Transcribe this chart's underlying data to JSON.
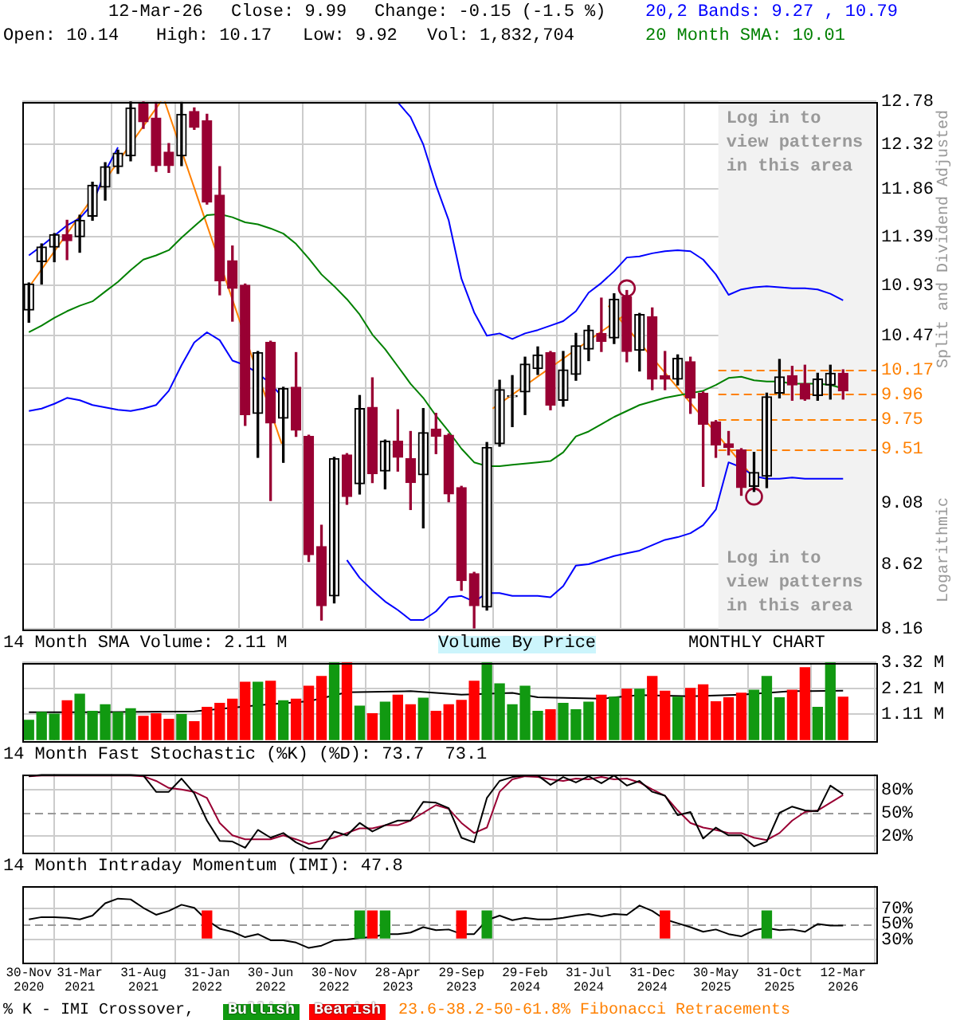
{
  "chart_data": [
    {
      "type": "candlestick",
      "x": [
        "2020-11",
        "2020-12",
        "2021-01",
        "2021-02",
        "2021-03",
        "2021-04",
        "2021-05",
        "2021-06",
        "2021-07",
        "2021-08",
        "2021-09",
        "2021-10",
        "2021-11",
        "2021-12",
        "2022-01",
        "2022-02",
        "2022-03",
        "2022-04",
        "2022-05",
        "2022-06",
        "2022-07",
        "2022-08",
        "2022-09",
        "2022-10",
        "2022-11",
        "2022-12",
        "2023-01",
        "2023-02",
        "2023-03",
        "2023-04",
        "2023-05",
        "2023-06",
        "2023-07",
        "2023-08",
        "2023-09",
        "2023-10",
        "2023-11",
        "2023-12",
        "2024-01",
        "2024-02",
        "2024-03",
        "2024-04",
        "2024-05",
        "2024-06",
        "2024-07",
        "2024-08",
        "2024-09",
        "2024-10",
        "2024-11",
        "2024-12",
        "2025-01",
        "2025-02",
        "2025-03",
        "2025-04",
        "2025-05",
        "2025-06",
        "2025-07",
        "2025-08",
        "2025-09",
        "2025-10",
        "2025-11",
        "2025-12",
        "2026-01",
        "2026-02",
        "2026-03"
      ],
      "ohlc": [
        [
          10.7,
          10.95,
          10.59,
          10.94
        ],
        [
          11.15,
          11.32,
          10.94,
          11.29
        ],
        [
          11.29,
          11.42,
          11.15,
          11.41
        ],
        [
          11.41,
          11.55,
          11.17,
          11.35
        ],
        [
          11.39,
          11.6,
          11.24,
          11.55
        ],
        [
          11.59,
          11.93,
          11.55,
          11.9
        ],
        [
          11.88,
          12.13,
          11.75,
          12.09
        ],
        [
          12.09,
          12.26,
          12.02,
          12.23
        ],
        [
          12.2,
          12.78,
          12.15,
          12.71
        ],
        [
          12.77,
          12.78,
          12.49,
          12.56
        ],
        [
          12.6,
          12.77,
          12.04,
          12.1
        ],
        [
          12.24,
          12.33,
          12.03,
          12.1
        ],
        [
          12.2,
          12.77,
          12.1,
          12.64
        ],
        [
          12.67,
          12.71,
          12.48,
          12.5
        ],
        [
          12.57,
          12.64,
          11.71,
          11.73
        ],
        [
          11.8,
          12.09,
          10.84,
          10.97
        ],
        [
          11.16,
          11.3,
          10.6,
          10.9
        ],
        [
          10.93,
          10.94,
          9.7,
          9.79
        ],
        [
          9.8,
          10.33,
          9.44,
          10.32
        ],
        [
          10.41,
          10.42,
          9.1,
          9.72
        ],
        [
          9.76,
          10.02,
          9.4,
          10.01
        ],
        [
          10.02,
          10.32,
          9.61,
          9.66
        ],
        [
          9.61,
          9.62,
          8.64,
          8.69
        ],
        [
          8.75,
          8.91,
          8.22,
          8.32
        ],
        [
          8.39,
          9.44,
          8.34,
          9.43
        ],
        [
          9.46,
          9.47,
          9.07,
          9.13
        ],
        [
          9.23,
          9.95,
          9.15,
          9.84
        ],
        [
          9.85,
          10.1,
          9.24,
          9.31
        ],
        [
          9.33,
          9.58,
          9.19,
          9.57
        ],
        [
          9.57,
          9.83,
          9.33,
          9.44
        ],
        [
          9.43,
          9.65,
          9.03,
          9.24
        ],
        [
          9.3,
          9.84,
          8.89,
          9.64
        ],
        [
          9.67,
          9.8,
          9.47,
          9.61
        ],
        [
          9.62,
          9.63,
          9.09,
          9.15
        ],
        [
          9.2,
          9.21,
          8.43,
          8.5
        ],
        [
          8.55,
          8.56,
          8.16,
          8.32
        ],
        [
          8.31,
          9.56,
          8.29,
          9.52
        ],
        [
          9.55,
          10.08,
          9.53,
          10.0
        ],
        [
          9.94,
          10.12,
          9.69,
          9.95
        ],
        [
          9.98,
          10.28,
          9.79,
          10.22
        ],
        [
          10.18,
          10.37,
          10.13,
          10.3
        ],
        [
          10.32,
          10.33,
          9.83,
          9.87
        ],
        [
          9.91,
          10.33,
          9.86,
          10.17
        ],
        [
          10.13,
          10.49,
          10.08,
          10.38
        ],
        [
          10.35,
          10.56,
          10.25,
          10.52
        ],
        [
          10.49,
          10.81,
          10.33,
          10.42
        ],
        [
          10.45,
          10.85,
          10.4,
          10.8
        ],
        [
          10.82,
          10.88,
          10.24,
          10.33
        ],
        [
          10.34,
          10.67,
          10.16,
          10.66
        ],
        [
          10.64,
          10.72,
          10.0,
          10.09
        ],
        [
          10.12,
          10.33,
          10.0,
          10.09
        ],
        [
          10.09,
          10.3,
          10.04,
          10.27
        ],
        [
          10.24,
          10.28,
          9.8,
          9.93
        ],
        [
          9.97,
          9.98,
          9.21,
          9.71
        ],
        [
          9.73,
          9.74,
          9.44,
          9.54
        ],
        [
          9.55,
          9.65,
          9.46,
          9.52
        ],
        [
          9.5,
          9.51,
          9.14,
          9.2
        ],
        [
          9.21,
          9.48,
          9.17,
          9.32
        ],
        [
          9.29,
          9.97,
          9.2,
          9.94
        ],
        [
          9.97,
          10.26,
          9.93,
          10.11
        ],
        [
          10.12,
          10.2,
          9.91,
          10.04
        ],
        [
          10.05,
          10.21,
          9.91,
          9.92
        ],
        [
          9.95,
          10.14,
          9.91,
          10.09
        ],
        [
          10.04,
          10.21,
          9.92,
          10.14
        ],
        [
          10.14,
          10.17,
          9.92,
          9.99
        ]
      ],
      "colors": [
        "#000000",
        "#000000",
        "#000000",
        "#990033",
        "#000000",
        "#000000",
        "#000000",
        "#000000",
        "#000000",
        "#990033",
        "#990033",
        "#990033",
        "#000000",
        "#990033",
        "#990033",
        "#990033",
        "#990033",
        "#990033",
        "#000000",
        "#990033",
        "#000000",
        "#990033",
        "#990033",
        "#990033",
        "#000000",
        "#990033",
        "#000000",
        "#990033",
        "#000000",
        "#990033",
        "#990033",
        "#000000",
        "#990033",
        "#990033",
        "#990033",
        "#990033",
        "#000000",
        "#000000",
        "#000000",
        "#000000",
        "#000000",
        "#990033",
        "#000000",
        "#000000",
        "#000000",
        "#990033",
        "#000000",
        "#990033",
        "#000000",
        "#990033",
        "#990033",
        "#000000",
        "#990033",
        "#990033",
        "#990033",
        "#990033",
        "#990033",
        "#000000",
        "#000000",
        "#000000",
        "#990033",
        "#990033",
        "#000000",
        "#000000",
        "#990033"
      ],
      "xlim": [
        "2020-10-16",
        "2026-05-20"
      ],
      "xticks": [
        {
          "value": "2020-11",
          "label": null
        },
        {
          "value": "2021-03",
          "label": null
        },
        {
          "value": "2021-08",
          "label": null
        },
        {
          "value": "2022-01",
          "label": null
        },
        {
          "value": "2022-06",
          "label": null
        },
        {
          "value": "2022-11",
          "label": null
        },
        {
          "value": "2023-04",
          "label": null
        },
        {
          "value": "2023-09",
          "label": null
        },
        {
          "value": "2024-02",
          "label": null
        },
        {
          "value": "2024-07",
          "label": null
        },
        {
          "value": "2024-12",
          "label": null
        },
        {
          "value": "2025-05",
          "label": null
        },
        {
          "value": "2025-10",
          "label": null
        },
        {
          "value": "2026-03",
          "label": null
        }
      ],
      "ylim": [
        8.16,
        12.78
      ],
      "yticks": [
        8.16,
        8.62,
        9.08,
        {
          "value": 9.54,
          "label": null
        },
        {
          "value": 10.01,
          "label": null
        },
        10.47,
        10.93,
        11.39,
        11.86,
        12.32,
        12.78
      ],
      "log": true,
      "grid": true,
      "tick_labels": "y",
      "ylabel": "Split and Dividend Adjusted",
      "series": [
        {
          "type": "line",
          "color": "#008000",
          "values": [
            10.5,
            10.56,
            10.63,
            10.69,
            10.74,
            10.78,
            10.87,
            10.96,
            11.07,
            11.17,
            11.21,
            11.26,
            11.38,
            11.49,
            11.6,
            11.61,
            11.58,
            11.53,
            11.51,
            11.47,
            11.42,
            11.32,
            11.18,
            11.03,
            10.92,
            10.8,
            10.66,
            10.48,
            10.35,
            10.2,
            10.05,
            9.93,
            9.78,
            9.65,
            9.51,
            9.4,
            9.37,
            9.37,
            9.38,
            9.39,
            9.4,
            9.41,
            9.48,
            9.61,
            9.65,
            9.71,
            9.77,
            9.82,
            9.87,
            9.9,
            9.93,
            9.95,
            9.97,
            9.99,
            10.04,
            10.1,
            10.11,
            10.08,
            10.07,
            10.07,
            10.05,
            10.05,
            10.05,
            10.04,
            10.01
          ]
        },
        {
          "type": "line",
          "color": "#0000ff",
          "values": [
            11.21,
            11.3,
            11.4,
            11.5,
            11.57,
            11.71,
            12.04,
            12.29,
            null,
            null,
            null,
            null,
            null,
            null,
            null,
            null,
            null,
            null,
            null,
            null,
            null,
            null,
            null,
            null,
            null,
            null,
            null,
            null,
            null,
            12.77,
            12.61,
            12.32,
            11.9,
            11.55,
            10.99,
            10.68,
            10.47,
            10.49,
            10.44,
            10.49,
            10.52,
            10.56,
            10.6,
            10.69,
            10.86,
            10.95,
            11.06,
            11.19,
            11.2,
            11.23,
            11.25,
            11.26,
            11.25,
            11.17,
            11.03,
            10.84,
            10.89,
            10.91,
            10.92,
            10.91,
            10.9,
            10.9,
            10.89,
            10.85,
            10.79
          ]
        },
        {
          "type": "line",
          "color": "#0000ff",
          "values": [
            9.82,
            9.84,
            9.88,
            9.93,
            9.91,
            9.87,
            9.85,
            9.83,
            9.82,
            9.84,
            9.87,
            9.99,
            10.21,
            10.41,
            10.5,
            10.43,
            10.25,
            10.21,
            10.14,
            10.05,
            9.93,
            null,
            null,
            null,
            null,
            8.65,
            8.52,
            8.43,
            8.35,
            8.29,
            8.22,
            8.22,
            8.28,
            8.38,
            8.39,
            8.35,
            8.41,
            8.41,
            8.39,
            8.39,
            8.39,
            8.38,
            8.46,
            8.61,
            8.62,
            8.65,
            8.68,
            8.7,
            8.72,
            8.76,
            8.8,
            8.82,
            8.85,
            8.91,
            9.03,
            9.4,
            9.36,
            9.29,
            9.27,
            9.27,
            9.28,
            9.27,
            9.27,
            9.27,
            9.27
          ]
        },
        {
          "type": "line",
          "color": "#ff8000",
          "x": [
            "2020-11",
            "2021-09-13"
          ],
          "values": [
            10.91,
            12.78
          ]
        },
        {
          "type": "line",
          "color": "#ff8000",
          "x": [
            "2021-09-22",
            "2022-06-28"
          ],
          "values": [
            12.78,
            9.55
          ]
        },
        {
          "type": "line",
          "color": "#ff8000",
          "x": [
            "2023-11-15",
            "2024-09-25"
          ],
          "values": [
            9.84,
            10.65
          ]
        },
        {
          "type": "line",
          "color": "#ff8000",
          "x": [
            "2024-08-18",
            "2025-07-28"
          ],
          "values": [
            10.74,
            9.29
          ]
        },
        {
          "type": "scatter",
          "marker": "circle",
          "color": "#990033",
          "x": [
            "2024-10",
            "2025-08"
          ],
          "values": [
            10.9,
            9.13
          ]
        }
      ],
      "ref_lines": [
        {
          "axis": "y",
          "value": 10.17,
          "label": "10.17",
          "color": "#ff8000",
          "line_style": "dashed"
        },
        {
          "axis": "y",
          "value": 9.96,
          "label": "9.96",
          "color": "#ff8000",
          "line_style": "dashed"
        },
        {
          "axis": "y",
          "value": 9.75,
          "label": "9.75",
          "color": "#ff8000",
          "line_style": "dashed"
        },
        {
          "axis": "y",
          "value": 9.51,
          "label": "9.51",
          "color": "#ff8000",
          "line_style": "dashed"
        }
      ],
      "bands": [
        {
          "axis": "x",
          "from": "2025-05-07",
          "to": "2026-05-20",
          "label": "Log in to view patterns in this area",
          "color": "#f2f2f2"
        }
      ],
      "annotations": [
        "12-Mar-26",
        "Close: 9.99",
        "Change: -0.15 (-1.5 %)",
        "Open: 10.14",
        "High: 10.17",
        "Low: 9.92",
        "Vol: 1,832,704",
        "20,2 Bands: 9.27 , 10.79",
        "20 Month SMA: 10.01",
        "Log in to view patterns in this area",
        "Logarithmic"
      ]
    },
    {
      "type": "bar",
      "title": "14 Month SMA Volume: 2.11 M",
      "x": [
        "2020-11",
        "2020-12",
        "2021-01",
        "2021-02",
        "2021-03",
        "2021-04",
        "2021-05",
        "2021-06",
        "2021-07",
        "2021-08",
        "2021-09",
        "2021-10",
        "2021-11",
        "2021-12",
        "2022-01",
        "2022-02",
        "2022-03",
        "2022-04",
        "2022-05",
        "2022-06",
        "2022-07",
        "2022-08",
        "2022-09",
        "2022-10",
        "2022-11",
        "2022-12",
        "2023-01",
        "2023-02",
        "2023-03",
        "2023-04",
        "2023-05",
        "2023-06",
        "2023-07",
        "2023-08",
        "2023-09",
        "2023-10",
        "2023-11",
        "2023-12",
        "2024-01",
        "2024-02",
        "2024-03",
        "2024-04",
        "2024-05",
        "2024-06",
        "2024-07",
        "2024-08",
        "2024-09",
        "2024-10",
        "2024-11",
        "2024-12",
        "2025-01",
        "2025-02",
        "2025-03",
        "2025-04",
        "2025-05",
        "2025-06",
        "2025-07",
        "2025-08",
        "2025-09",
        "2025-10",
        "2025-11",
        "2025-12",
        "2026-01",
        "2026-02",
        "2026-03"
      ],
      "xlim": [
        "2020-10-16",
        "2026-05-20"
      ],
      "xticks": [
        {
          "value": "2020-11",
          "label": null
        },
        {
          "value": "2021-03",
          "label": null
        },
        {
          "value": "2021-08",
          "label": null
        },
        {
          "value": "2022-01",
          "label": null
        },
        {
          "value": "2022-06",
          "label": null
        },
        {
          "value": "2022-11",
          "label": null
        },
        {
          "value": "2023-04",
          "label": null
        },
        {
          "value": "2023-09",
          "label": null
        },
        {
          "value": "2024-02",
          "label": null
        },
        {
          "value": "2024-07",
          "label": null
        },
        {
          "value": "2024-12",
          "label": null
        },
        {
          "value": "2025-05",
          "label": null
        },
        {
          "value": "2025-10",
          "label": null
        },
        {
          "value": "2026-03",
          "label": null
        }
      ],
      "ylim": [
        0,
        3.32
      ],
      "yticks": [
        {
          "value": 1.11,
          "label": "1.11 M"
        },
        {
          "value": 2.21,
          "label": "2.21 M"
        },
        {
          "value": 3.32,
          "label": "3.32 M"
        }
      ],
      "grid": true,
      "tick_labels": "y",
      "series": [
        {
          "colors": [
            "#119911",
            "#119911",
            "#119911",
            "#ff0000",
            "#119911",
            "#119911",
            "#119911",
            "#119911",
            "#119911",
            "#ff0000",
            "#ff0000",
            "#ff0000",
            "#119911",
            "#ff0000",
            "#ff0000",
            "#ff0000",
            "#ff0000",
            "#ff0000",
            "#119911",
            "#ff0000",
            "#119911",
            "#ff0000",
            "#ff0000",
            "#ff0000",
            "#119911",
            "#ff0000",
            "#119911",
            "#ff0000",
            "#119911",
            "#ff0000",
            "#ff0000",
            "#119911",
            "#ff0000",
            "#ff0000",
            "#ff0000",
            "#ff0000",
            "#119911",
            "#119911",
            "#119911",
            "#119911",
            "#119911",
            "#ff0000",
            "#119911",
            "#119911",
            "#119911",
            "#ff0000",
            "#119911",
            "#ff0000",
            "#119911",
            "#ff0000",
            "#ff0000",
            "#119911",
            "#ff0000",
            "#ff0000",
            "#ff0000",
            "#ff0000",
            "#ff0000",
            "#119911",
            "#119911",
            "#119911",
            "#ff0000",
            "#ff0000",
            "#119911",
            "#119911",
            "#ff0000"
          ],
          "values": [
            0.85,
            1.19,
            1.11,
            1.68,
            1.96,
            1.23,
            1.51,
            1.19,
            1.34,
            1.02,
            1.13,
            0.89,
            1.09,
            0.79,
            1.4,
            1.57,
            1.75,
            2.47,
            2.47,
            2.51,
            1.68,
            1.75,
            2.3,
            2.72,
            3.32,
            3.32,
            1.45,
            1.13,
            1.62,
            1.92,
            1.51,
            1.79,
            1.23,
            1.51,
            1.7,
            2.51,
            3.32,
            2.4,
            1.51,
            2.3,
            1.23,
            1.3,
            1.57,
            1.3,
            1.62,
            1.92,
            1.83,
            2.17,
            2.17,
            2.72,
            2.09,
            1.83,
            2.21,
            2.36,
            1.64,
            1.81,
            2.0,
            2.13,
            2.72,
            1.81,
            2.13,
            3.09,
            1.4,
            3.32,
            1.83
          ]
        },
        {
          "type": "line",
          "color": "#000000",
          "x": [
            "2020-11",
            "2021-04",
            "2021-12",
            "2022-05",
            "2022-09",
            "2022-12",
            "2023-05",
            "2023-09",
            "2024-01",
            "2024-03",
            "2024-08",
            "2024-11",
            "2025-03",
            "2025-07",
            "2025-11",
            "2026-03"
          ],
          "values": [
            1.19,
            1.19,
            1.23,
            1.49,
            1.66,
            2.04,
            2.09,
            1.94,
            2.02,
            1.83,
            1.77,
            1.92,
            1.87,
            1.94,
            2.09,
            2.11
          ]
        }
      ],
      "annotations": [
        "Volume By Price",
        "MONTHLY CHART"
      ]
    },
    {
      "type": "line",
      "title": "14 Month Fast Stochastic (%K) (%D): 73.7  73.1",
      "x": [
        "2020-11",
        "2020-12",
        "2021-01",
        "2021-02",
        "2021-03",
        "2021-04",
        "2021-05",
        "2021-06",
        "2021-07",
        "2021-08",
        "2021-09",
        "2021-10",
        "2021-11",
        "2021-12",
        "2022-01",
        "2022-02",
        "2022-03",
        "2022-04",
        "2022-05",
        "2022-06",
        "2022-07",
        "2022-08",
        "2022-09",
        "2022-10",
        "2022-11",
        "2022-12",
        "2023-01",
        "2023-02",
        "2023-03",
        "2023-04",
        "2023-05",
        "2023-06",
        "2023-07",
        "2023-08",
        "2023-09",
        "2023-10",
        "2023-11",
        "2023-12",
        "2024-01",
        "2024-02",
        "2024-03",
        "2024-04",
        "2024-05",
        "2024-06",
        "2024-07",
        "2024-08",
        "2024-09",
        "2024-10",
        "2024-11",
        "2024-12",
        "2025-01",
        "2025-02",
        "2025-03",
        "2025-04",
        "2025-05",
        "2025-06",
        "2025-07",
        "2025-08",
        "2025-09",
        "2025-10",
        "2025-11",
        "2025-12",
        "2026-01",
        "2026-02",
        "2026-03"
      ],
      "xlim": [
        "2020-10-16",
        "2026-05-20"
      ],
      "xticks": [
        {
          "value": "2020-11",
          "label": null
        },
        {
          "value": "2021-03",
          "label": null
        },
        {
          "value": "2021-08",
          "label": null
        },
        {
          "value": "2022-01",
          "label": null
        },
        {
          "value": "2022-06",
          "label": null
        },
        {
          "value": "2022-11",
          "label": null
        },
        {
          "value": "2023-04",
          "label": null
        },
        {
          "value": "2023-09",
          "label": null
        },
        {
          "value": "2024-02",
          "label": null
        },
        {
          "value": "2024-07",
          "label": null
        },
        {
          "value": "2024-12",
          "label": null
        },
        {
          "value": "2025-05",
          "label": null
        },
        {
          "value": "2025-10",
          "label": null
        },
        {
          "value": "2026-03",
          "label": null
        }
      ],
      "ylim": [
        0,
        100
      ],
      "yticks": [
        {
          "value": 20,
          "label": "20%"
        },
        {
          "value": 50,
          "label": "50%"
        },
        {
          "value": 80,
          "label": "80%"
        }
      ],
      "grid": true,
      "tick_labels": "y",
      "series": [
        {
          "color": "#000000",
          "values": [
            97,
            99,
            99,
            99,
            99,
            99,
            99,
            99,
            99,
            98,
            77,
            77,
            94,
            75,
            40,
            14,
            13,
            5,
            28,
            18,
            24,
            12,
            4,
            4,
            26,
            21,
            37,
            26,
            34,
            40,
            40,
            64,
            63,
            56,
            18,
            12,
            69,
            91,
            96,
            98,
            98,
            86,
            96,
            89,
            97,
            88,
            98,
            85,
            91,
            77,
            72,
            47,
            51,
            17,
            31,
            21,
            21,
            7,
            13,
            50,
            58,
            53,
            52,
            85,
            74
          ]
        },
        {
          "color": "#990033",
          "values": [
            97,
            98,
            98,
            98,
            98,
            98,
            98,
            98,
            98,
            97,
            91,
            82,
            80,
            77,
            69,
            37,
            21,
            16,
            16,
            16,
            21,
            16,
            10,
            14,
            18,
            24,
            30,
            30,
            34,
            34,
            40,
            50,
            60,
            55,
            37,
            24,
            31,
            77,
            93,
            97,
            96,
            93,
            91,
            94,
            93,
            96,
            93,
            94,
            89,
            80,
            72,
            53,
            37,
            31,
            28,
            24,
            24,
            18,
            15,
            24,
            40,
            51,
            53,
            63,
            73
          ]
        }
      ],
      "ref_lines": [
        {
          "axis": "y",
          "value": 50,
          "color": "#999999",
          "line_style": "dashed"
        }
      ]
    },
    {
      "type": "line",
      "title": "14 Month Intraday Momentum (IMI): 47.8",
      "x": [
        "2020-11",
        "2020-12",
        "2021-01",
        "2021-02",
        "2021-03",
        "2021-04",
        "2021-05",
        "2021-06",
        "2021-07",
        "2021-08",
        "2021-09",
        "2021-10",
        "2021-11",
        "2021-12",
        "2022-01",
        "2022-02",
        "2022-03",
        "2022-04",
        "2022-05",
        "2022-06",
        "2022-07",
        "2022-08",
        "2022-09",
        "2022-10",
        "2022-11",
        "2022-12",
        "2023-01",
        "2023-02",
        "2023-03",
        "2023-04",
        "2023-05",
        "2023-06",
        "2023-07",
        "2023-08",
        "2023-09",
        "2023-10",
        "2023-11",
        "2023-12",
        "2024-01",
        "2024-02",
        "2024-03",
        "2024-04",
        "2024-05",
        "2024-06",
        "2024-07",
        "2024-08",
        "2024-09",
        "2024-10",
        "2024-11",
        "2024-12",
        "2025-01",
        "2025-02",
        "2025-03",
        "2025-04",
        "2025-05",
        "2025-06",
        "2025-07",
        "2025-08",
        "2025-09",
        "2025-10",
        "2025-11",
        "2025-12",
        "2026-01",
        "2026-02",
        "2026-03"
      ],
      "xlim": [
        "2020-10-16",
        "2026-05-20"
      ],
      "xticks": [
        {
          "value": "2020-11",
          "label": "30-Nov 2020"
        },
        {
          "value": "2021-03",
          "label": "31-Mar 2021"
        },
        {
          "value": "2021-08",
          "label": "31-Aug 2021"
        },
        {
          "value": "2022-01",
          "label": "31-Jan 2022"
        },
        {
          "value": "2022-06",
          "label": "30-Jun 2022"
        },
        {
          "value": "2022-11",
          "label": "30-Nov 2022"
        },
        {
          "value": "2023-04",
          "label": "28-Apr 2023"
        },
        {
          "value": "2023-09",
          "label": "29-Sep 2023"
        },
        {
          "value": "2024-02",
          "label": "29-Feb 2024"
        },
        {
          "value": "2024-07",
          "label": "31-Jul 2024"
        },
        {
          "value": "2024-12",
          "label": "31-Dec 2024"
        },
        {
          "value": "2025-05",
          "label": "30-May 2025"
        },
        {
          "value": "2025-10",
          "label": "31-Oct 2025"
        },
        {
          "value": "2026-03",
          "label": "12-Mar 2026"
        }
      ],
      "ylim": [
        0,
        100
      ],
      "yticks": [
        {
          "value": 30,
          "label": "30%"
        },
        {
          "value": 50,
          "label": "50%"
        },
        {
          "value": 70,
          "label": "70%"
        }
      ],
      "grid": true,
      "legend": "bottom",
      "series": [
        {
          "color": "#000000",
          "values": [
            56,
            59,
            59,
            58,
            56,
            61,
            77,
            83,
            82,
            71,
            62,
            67,
            75,
            71,
            55,
            44,
            40,
            33,
            37,
            29,
            29,
            26,
            19,
            22,
            29,
            30,
            32,
            33,
            37,
            37,
            39,
            46,
            42,
            43,
            37,
            37,
            55,
            61,
            55,
            58,
            56,
            56,
            58,
            61,
            63,
            60,
            63,
            62,
            74,
            67,
            56,
            51,
            46,
            40,
            43,
            37,
            34,
            42,
            45,
            42,
            43,
            40,
            50,
            48,
            48
          ]
        },
        {
          "type": "bar",
          "name": "Bullish",
          "color": "#119911",
          "x": [
            "2023-01",
            "2023-03",
            "2023-11",
            "2025-09"
          ],
          "base": [
            32,
            32,
            32,
            32
          ],
          "values": [
            35,
            35,
            35,
            35
          ]
        },
        {
          "type": "bar",
          "name": "Bearish",
          "color": "#ff0000",
          "x": [
            "2022-01",
            "2023-02",
            "2023-09",
            "2025-01"
          ],
          "base": [
            32,
            32,
            32,
            32
          ],
          "values": [
            35,
            35,
            35,
            35
          ]
        }
      ],
      "ref_lines": [
        {
          "axis": "y",
          "value": 50,
          "color": "#999999",
          "line_style": "dashed"
        }
      ],
      "annotations": [
        "% K - IMI Crossover,",
        "23.6-38.2-50-61.8% Fibonacci Retracements"
      ]
    }
  ]
}
